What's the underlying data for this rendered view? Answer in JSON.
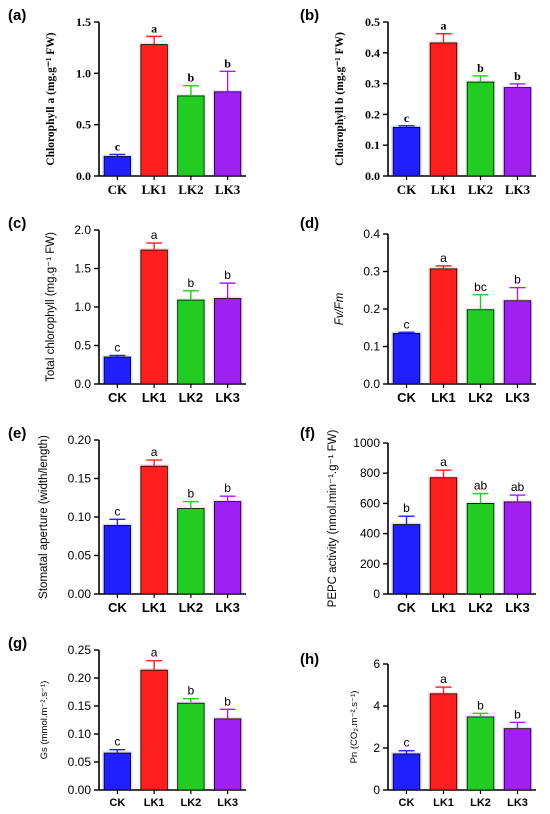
{
  "chart_data": [
    {
      "panel": "(a)",
      "type": "bar",
      "ylabel": "Chlorophyll a (mg.g⁻¹ FW)",
      "categories": [
        "CK",
        "LK1",
        "LK2",
        "LK3"
      ],
      "values": [
        0.19,
        1.28,
        0.78,
        0.82
      ],
      "errors": [
        0.02,
        0.08,
        0.1,
        0.2
      ],
      "letters": [
        "c",
        "a",
        "b",
        "b"
      ],
      "ylim": [
        0,
        1.5
      ],
      "yticks": [
        0.0,
        0.5,
        1.0,
        1.5
      ],
      "ytick_labels": [
        "0.0",
        "0.5",
        "1.0",
        "1.5"
      ]
    },
    {
      "panel": "(b)",
      "type": "bar",
      "ylabel": "Chlorophyll b (mg.g⁻¹ FW)",
      "categories": [
        "CK",
        "LK1",
        "LK2",
        "LK3"
      ],
      "values": [
        0.158,
        0.432,
        0.305,
        0.287
      ],
      "errors": [
        0.005,
        0.03,
        0.02,
        0.012
      ],
      "letters": [
        "c",
        "a",
        "b",
        "b"
      ],
      "ylim": [
        0,
        0.5
      ],
      "yticks": [
        0.0,
        0.1,
        0.2,
        0.3,
        0.4,
        0.5
      ],
      "ytick_labels": [
        "0.0",
        "0.1",
        "0.2",
        "0.3",
        "0.4",
        "0.5"
      ]
    },
    {
      "panel": "(c)",
      "type": "bar",
      "ylabel": "Total chlorophyll (mg.g⁻¹ FW)",
      "categories": [
        "CK",
        "LK1",
        "LK2",
        "LK3"
      ],
      "values": [
        0.35,
        1.74,
        1.09,
        1.11
      ],
      "errors": [
        0.02,
        0.09,
        0.12,
        0.2
      ],
      "letters": [
        "c",
        "a",
        "b",
        "b"
      ],
      "ylim": [
        0,
        2.0
      ],
      "yticks": [
        0.0,
        0.5,
        1.0,
        1.5,
        2.0
      ],
      "ytick_labels": [
        "0.0",
        "0.5",
        "1.0",
        "1.5",
        "2.0"
      ]
    },
    {
      "panel": "(d)",
      "type": "bar",
      "ylabel": "Fv/Fm",
      "categories": [
        "CK",
        "LK1",
        "LK2",
        "LK3"
      ],
      "values": [
        0.135,
        0.307,
        0.198,
        0.222
      ],
      "errors": [
        0.003,
        0.008,
        0.04,
        0.035
      ],
      "letters": [
        "c",
        "a",
        "bc",
        "b"
      ],
      "ylim": [
        0,
        0.4
      ],
      "yticks": [
        0.0,
        0.1,
        0.2,
        0.3,
        0.4
      ],
      "ytick_labels": [
        "0.0",
        "0.1",
        "0.2",
        "0.3",
        "0.4"
      ]
    },
    {
      "panel": "(e)",
      "type": "bar",
      "ylabel": "Stomatal aperture (width/length)",
      "categories": [
        "CK",
        "LK1",
        "LK2",
        "LK3"
      ],
      "values": [
        0.089,
        0.166,
        0.111,
        0.12
      ],
      "errors": [
        0.008,
        0.008,
        0.009,
        0.007
      ],
      "letters": [
        "c",
        "a",
        "b",
        "b"
      ],
      "ylim": [
        0,
        0.2
      ],
      "yticks": [
        0.0,
        0.05,
        0.1,
        0.15,
        0.2
      ],
      "ytick_labels": [
        "0.00",
        "0.05",
        "0.10",
        "0.15",
        "0.20"
      ]
    },
    {
      "panel": "(f)",
      "type": "bar",
      "ylabel": "PEPC activity (nmol.min⁻¹.g⁻¹ FW)",
      "categories": [
        "CK",
        "LK1",
        "LK2",
        "LK3"
      ],
      "values": [
        460,
        770,
        600,
        610
      ],
      "errors": [
        55,
        50,
        65,
        45
      ],
      "letters": [
        "b",
        "a",
        "ab",
        "ab"
      ],
      "ylim": [
        0,
        1000
      ],
      "yticks": [
        0,
        200,
        400,
        600,
        800,
        1000
      ],
      "ytick_labels": [
        "0",
        "200",
        "400",
        "600",
        "800",
        "1000"
      ]
    },
    {
      "panel": "(g)",
      "type": "bar",
      "ylabel": "Gs (mmol.m⁻².s⁻¹)",
      "categories": [
        "CK",
        "LK1",
        "LK2",
        "LK3"
      ],
      "values": [
        0.066,
        0.214,
        0.155,
        0.127
      ],
      "errors": [
        0.006,
        0.017,
        0.008,
        0.017
      ],
      "letters": [
        "c",
        "a",
        "b",
        "b"
      ],
      "ylim": [
        0,
        0.25
      ],
      "yticks": [
        0.0,
        0.05,
        0.1,
        0.15,
        0.2,
        0.25
      ],
      "ytick_labels": [
        "0.00",
        "0.05",
        "0.10",
        "0.15",
        "0.20",
        "0.25"
      ]
    },
    {
      "panel": "(h)",
      "type": "bar",
      "ylabel": "Pn (CO₂.m⁻².s⁻¹)",
      "categories": [
        "CK",
        "LK1",
        "LK2",
        "LK3"
      ],
      "values": [
        1.72,
        4.58,
        3.48,
        2.92
      ],
      "errors": [
        0.15,
        0.32,
        0.17,
        0.3
      ],
      "letters": [
        "c",
        "a",
        "b",
        "b"
      ],
      "ylim": [
        0,
        6
      ],
      "yticks": [
        0,
        2,
        4,
        6
      ],
      "ytick_labels": [
        "0",
        "2",
        "4",
        "6"
      ]
    }
  ],
  "colors": {
    "CK": "#1f1fff",
    "LK1": "#ff1f1f",
    "LK2": "#22cc22",
    "LK3": "#a020f0",
    "axis": "#000000"
  }
}
